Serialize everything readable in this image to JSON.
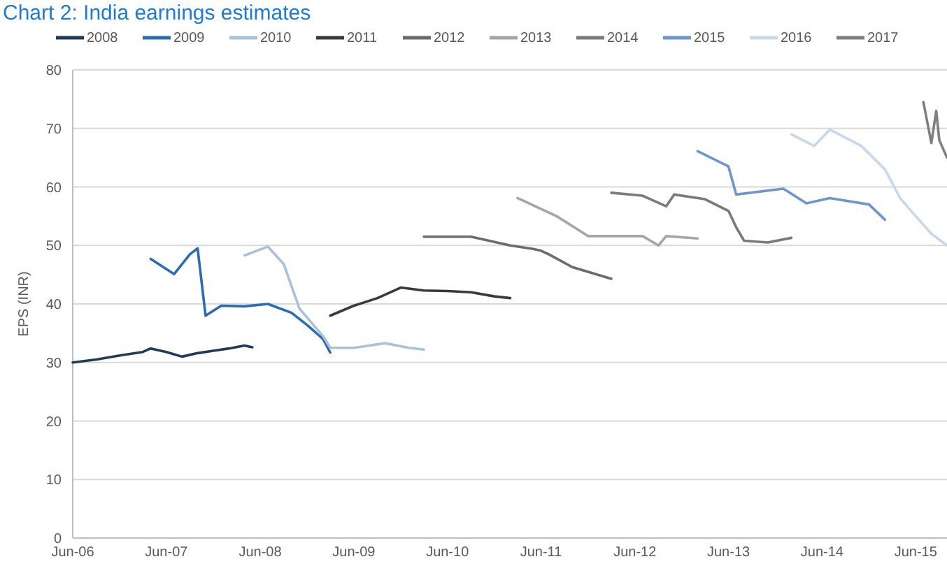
{
  "chart_data": {
    "type": "line",
    "title": "Chart 2: India earnings estimates",
    "ylabel": "EPS (INR)",
    "xlim": [
      "2006-06",
      "2015-10"
    ],
    "xticks": [
      {
        "value": "2006-06",
        "label": "Jun-06"
      },
      {
        "value": "2007-06",
        "label": "Jun-07"
      },
      {
        "value": "2008-06",
        "label": "Jun-08"
      },
      {
        "value": "2009-06",
        "label": "Jun-09"
      },
      {
        "value": "2010-06",
        "label": "Jun-10"
      },
      {
        "value": "2011-06",
        "label": "Jun-11"
      },
      {
        "value": "2012-06",
        "label": "Jun-12"
      },
      {
        "value": "2013-06",
        "label": "Jun-13"
      },
      {
        "value": "2014-06",
        "label": "Jun-14"
      },
      {
        "value": "2015-06",
        "label": "Jun-15"
      }
    ],
    "ylim": [
      0,
      80
    ],
    "yticks": [
      0,
      10,
      20,
      30,
      40,
      50,
      60,
      70,
      80
    ],
    "grid": "y",
    "legend": "top",
    "line_style": "solid",
    "marker": "none",
    "series": [
      {
        "name": "2008",
        "color": "#1f3a5a",
        "x": [
          "2006-06",
          "2006-09",
          "2006-12",
          "2007-03",
          "2007-04",
          "2007-06",
          "2007-08",
          "2007-10",
          "2007-12",
          "2008-02",
          "2008-04",
          "2008-05"
        ],
        "values": [
          30,
          30.5,
          31.2,
          31.8,
          32.4,
          31.8,
          31,
          31.6,
          32,
          32.4,
          32.9,
          32.6
        ]
      },
      {
        "name": "2009",
        "color": "#2a6db5",
        "x": [
          "2007-04",
          "2007-07",
          "2007-09",
          "2007-10",
          "2007-11",
          "2008-01",
          "2008-04",
          "2008-07",
          "2008-10",
          "2008-12",
          "2009-02",
          "2009-03"
        ],
        "values": [
          47.7,
          45.1,
          48.5,
          49.5,
          38,
          39.7,
          39.6,
          40,
          38.5,
          36.4,
          34,
          31.7
        ]
      },
      {
        "name": "2010",
        "color": "#a9c1d9",
        "x": [
          "2008-04",
          "2008-07",
          "2008-09",
          "2008-11",
          "2009-02",
          "2009-03",
          "2009-06",
          "2009-10",
          "2010-01",
          "2010-03"
        ],
        "values": [
          48.3,
          49.8,
          46.8,
          39.2,
          34.5,
          32.5,
          32.5,
          33.3,
          32.5,
          32.2
        ]
      },
      {
        "name": "2011",
        "color": "#3a3a3a",
        "x": [
          "2009-03",
          "2009-06",
          "2009-09",
          "2009-12",
          "2010-03",
          "2010-06",
          "2010-09",
          "2010-12",
          "2011-02"
        ],
        "values": [
          38,
          39.7,
          41,
          42.8,
          42.3,
          42.2,
          42,
          41.3,
          41
        ]
      },
      {
        "name": "2012",
        "color": "#6b6b6b",
        "x": [
          "2010-03",
          "2010-09",
          "2011-02",
          "2011-05",
          "2011-06",
          "2011-07",
          "2011-10",
          "2012-03"
        ],
        "values": [
          51.5,
          51.5,
          50,
          49.4,
          49.1,
          48.5,
          46.3,
          44.3
        ]
      },
      {
        "name": "2013",
        "color": "#a6a6a6",
        "x": [
          "2011-03",
          "2011-08",
          "2011-12",
          "2012-07",
          "2012-09",
          "2012-10",
          "2013-02"
        ],
        "values": [
          58.1,
          55,
          51.6,
          51.6,
          50,
          51.6,
          51.2
        ]
      },
      {
        "name": "2014",
        "color": "#7a7a7a",
        "x": [
          "2012-03",
          "2012-07",
          "2012-10",
          "2012-11",
          "2013-03",
          "2013-06",
          "2013-07",
          "2013-08",
          "2013-11",
          "2014-02"
        ],
        "values": [
          59,
          58.5,
          56.7,
          58.7,
          57.9,
          55.9,
          53.1,
          50.8,
          50.5,
          51.3
        ]
      },
      {
        "name": "2015",
        "color": "#6f95cf",
        "x": [
          "2013-02",
          "2013-06",
          "2013-07",
          "2014-01",
          "2014-04",
          "2014-07",
          "2014-12",
          "2015-02"
        ],
        "values": [
          66.1,
          63.5,
          58.7,
          59.7,
          57.2,
          58.1,
          57,
          54.4
        ]
      },
      {
        "name": "2016",
        "color": "#c8d8ec",
        "x": [
          "2014-02",
          "2014-05",
          "2014-07",
          "2014-11",
          "2015-02",
          "2015-04",
          "2015-06",
          "2015-08",
          "2015-10"
        ],
        "values": [
          69,
          67,
          69.8,
          67,
          63,
          58.1,
          55,
          52,
          50
        ]
      },
      {
        "name": "2017",
        "color": "#808080",
        "x": [
          "2015-07",
          "2015-08",
          "2015-08-20",
          "2015-09",
          "2015-10"
        ],
        "values": [
          74.5,
          67.5,
          73,
          68,
          65
        ]
      }
    ]
  }
}
